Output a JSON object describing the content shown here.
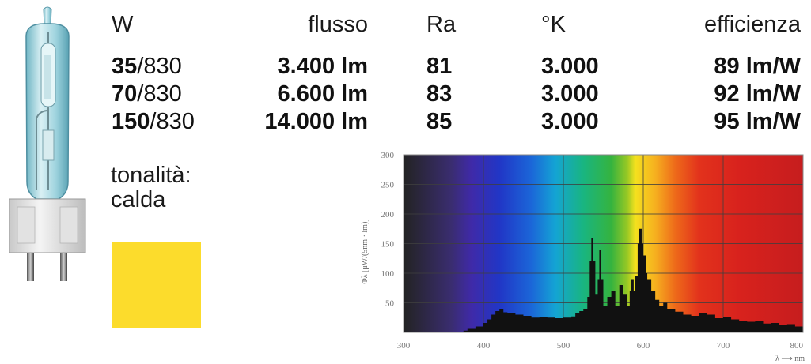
{
  "table": {
    "headers": {
      "w": "W",
      "flusso": "flusso",
      "ra": "Ra",
      "k": "°K",
      "eff": "efficienza"
    },
    "rows": [
      {
        "w_bold": "35",
        "w_rest": "/830",
        "flusso": "3.400 lm",
        "ra": "81",
        "k": "3.000",
        "eff": "89 lm/W"
      },
      {
        "w_bold": "70",
        "w_rest": "/830",
        "flusso": "6.600 lm",
        "ra": "83",
        "k": "3.000",
        "eff": "92 lm/W"
      },
      {
        "w_bold": "150",
        "w_rest": "/830",
        "flusso": "14.000 lm",
        "ra": "85",
        "k": "3.000",
        "eff": "95 lm/W"
      }
    ]
  },
  "tone": {
    "line1": "tonalità:",
    "line2": "calda",
    "swatch_color": "#fcdc2c"
  },
  "chart_data": {
    "type": "area",
    "ylabel": "Φλ [μW/(5nm · lm)]",
    "xlabel": "λ ⟶ nm",
    "xlim": [
      300,
      800
    ],
    "ylim": [
      0,
      300
    ],
    "xticks": [
      "300",
      "400",
      "500",
      "600",
      "700",
      "800"
    ],
    "yticks": [
      "50",
      "100",
      "150",
      "200",
      "250",
      "300"
    ],
    "grid": true,
    "background": "visible spectrum gradient",
    "series": [
      {
        "x": [
          300,
          370,
          375,
          380,
          390,
          400,
          405,
          410,
          415,
          420,
          425,
          430,
          440,
          450,
          460,
          470,
          480,
          490,
          500,
          510,
          515,
          520,
          525,
          530,
          533,
          535,
          537,
          540,
          543,
          545,
          547,
          550,
          555,
          560,
          565,
          570,
          575,
          580,
          583,
          585,
          588,
          590,
          593,
          595,
          598,
          600,
          603,
          605,
          610,
          615,
          620,
          625,
          630,
          640,
          650,
          660,
          670,
          680,
          690,
          700,
          710,
          720,
          730,
          740,
          750,
          760,
          770,
          780,
          790,
          800
        ],
        "y": [
          0,
          0,
          3,
          6,
          10,
          16,
          22,
          30,
          36,
          40,
          34,
          32,
          30,
          28,
          25,
          26,
          25,
          24,
          25,
          27,
          32,
          36,
          40,
          60,
          120,
          160,
          120,
          65,
          90,
          140,
          90,
          45,
          60,
          70,
          45,
          80,
          65,
          45,
          70,
          90,
          70,
          95,
          150,
          175,
          150,
          130,
          100,
          90,
          70,
          55,
          45,
          50,
          40,
          35,
          30,
          28,
          32,
          30,
          24,
          26,
          22,
          20,
          18,
          20,
          15,
          16,
          12,
          14,
          10,
          8
        ]
      }
    ]
  },
  "colors": {
    "spectrum_stops": [
      "#232323",
      "#3a2d70",
      "#3f2aa8",
      "#2136c6",
      "#1b66d8",
      "#14a4d4",
      "#19b580",
      "#35b33f",
      "#98c824",
      "#f4e11e",
      "#f6b01f",
      "#ee6a1a",
      "#e2321c",
      "#d8221d",
      "#c61d1e"
    ],
    "curve": "#111111",
    "grid": "#3f3f3f"
  }
}
